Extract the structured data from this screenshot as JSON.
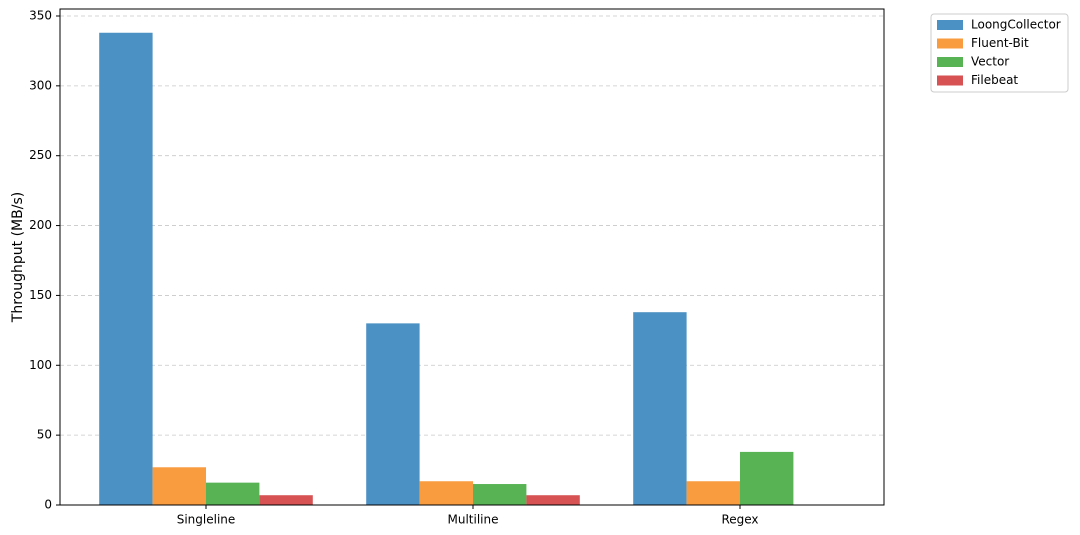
{
  "chart_data": {
    "type": "bar",
    "y_label": "Throughput (MB/s)",
    "categories": [
      "Singleline",
      "Multiline",
      "Regex"
    ],
    "series": [
      {
        "name": "LoongCollector",
        "color": "#4c91c3",
        "values": [
          338,
          130,
          138
        ]
      },
      {
        "name": "Fluent-Bit",
        "color": "#f99b3f",
        "values": [
          27,
          17,
          17
        ]
      },
      {
        "name": "Vector",
        "color": "#58b354",
        "values": [
          16,
          15,
          38
        ]
      },
      {
        "name": "Filebeat",
        "color": "#d65253",
        "values": [
          7,
          7,
          null
        ]
      }
    ],
    "ylim": [
      0,
      355
    ],
    "yticks": [
      0,
      50,
      100,
      150,
      200,
      250,
      300,
      350
    ],
    "grid": true,
    "legend": "outside-top-right"
  }
}
